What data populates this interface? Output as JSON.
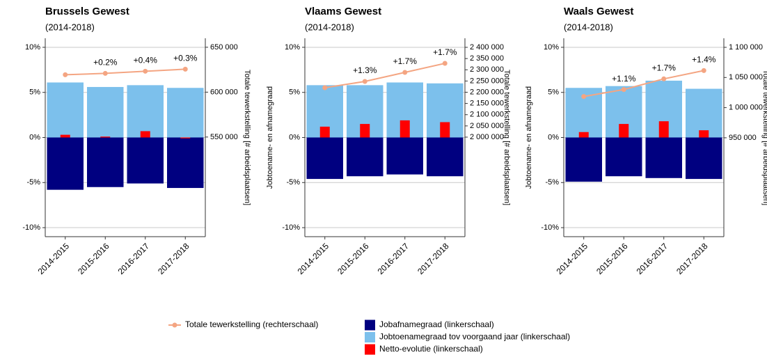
{
  "chart_data": [
    {
      "type": "bar",
      "title": "Brussels Gewest",
      "subtitle": "(2014-2018)",
      "y2label": "Totale tewerkstelling [# arbeidsplaatsen]",
      "categories": [
        "2014-2015",
        "2015-2016",
        "2016-2017",
        "2017-2018"
      ],
      "ylim": [
        -11,
        11
      ],
      "yticks": [
        {
          "value": -10,
          "label": "-10%"
        },
        {
          "value": -5,
          "label": "-5%"
        },
        {
          "value": 0,
          "label": "0%"
        },
        {
          "value": 5,
          "label": "5%"
        },
        {
          "value": 10,
          "label": "10%"
        }
      ],
      "y2lim": [
        439000,
        660000
      ],
      "y2ticks": [
        {
          "value": 550000,
          "label": "550 000"
        },
        {
          "value": 600000,
          "label": "600 000"
        },
        {
          "value": 650000,
          "label": "650 000"
        }
      ],
      "grid": true,
      "series": [
        {
          "name": "Jobafnamegraad (linkerschaal)",
          "color": "#000080",
          "values": [
            -5.8,
            -5.5,
            -5.1,
            -5.6
          ]
        },
        {
          "name": "Jobtoenamegraad tov voorgaand jaar (linkerschaal)",
          "color": "#7cc0ec",
          "values": [
            6.1,
            5.6,
            5.8,
            5.5
          ]
        },
        {
          "name": "Netto-evolutie (linkerschaal)",
          "color": "#ff0000",
          "values": [
            0.3,
            0.1,
            0.7,
            -0.1
          ]
        },
        {
          "name": "Totale tewerkstelling (rechterschaal)",
          "type": "line",
          "axis": "y2",
          "color": "#f4a582",
          "values": [
            619400,
            620900,
            623300,
            625600
          ],
          "annotations": [
            null,
            "+0.2%",
            "+0.4%",
            "+0.3%"
          ]
        }
      ]
    },
    {
      "type": "bar",
      "title": "Vlaams Gewest",
      "subtitle": "(2014-2018)",
      "ylabel": "Jobtoename- en afnamegraad",
      "y2label": "Totale tewerkstelling [# arbeidsplaatsen]",
      "categories": [
        "2014-2015",
        "2015-2016",
        "2016-2017",
        "2017-2018"
      ],
      "ylim": [
        -11,
        11
      ],
      "yticks": [
        {
          "value": -10,
          "label": "-10%"
        },
        {
          "value": -5,
          "label": "-5%"
        },
        {
          "value": 0,
          "label": "0%"
        },
        {
          "value": 5,
          "label": "5%"
        },
        {
          "value": 10,
          "label": "10%"
        }
      ],
      "y2lim": [
        1556600,
        2440300
      ],
      "y2ticks": [
        {
          "value": 2000000,
          "label": "2 000 000"
        },
        {
          "value": 2050000,
          "label": "2 050 000"
        },
        {
          "value": 2100000,
          "label": "2 100 000"
        },
        {
          "value": 2150000,
          "label": "2 150 000"
        },
        {
          "value": 2200000,
          "label": "2 200 000"
        },
        {
          "value": 2250000,
          "label": "2 250 000"
        },
        {
          "value": 2300000,
          "label": "2 300 000"
        },
        {
          "value": 2350000,
          "label": "2 350 000"
        },
        {
          "value": 2400000,
          "label": "2 400 000"
        }
      ],
      "grid": true,
      "series": [
        {
          "color": "#000080",
          "values": [
            -4.6,
            -4.3,
            -4.1,
            -4.3
          ]
        },
        {
          "color": "#7cc0ec",
          "values": [
            5.8,
            5.8,
            6.1,
            6.0
          ]
        },
        {
          "color": "#ff0000",
          "values": [
            1.2,
            1.5,
            1.9,
            1.7
          ]
        },
        {
          "type": "line",
          "axis": "y2",
          "color": "#f4a582",
          "values": [
            2220200,
            2248000,
            2288400,
            2328700
          ],
          "annotations": [
            null,
            "+1.3%",
            "+1.7%",
            "+1.7%"
          ]
        }
      ]
    },
    {
      "type": "bar",
      "title": "Waals Gewest",
      "subtitle": "(2014-2018)",
      "ylabel": "Jobtoename- en afnamegraad",
      "y2label": "Totale tewerkstelling [# arbeidsplaatsen]",
      "categories": [
        "2014-2015",
        "2015-2016",
        "2016-2017",
        "2017-2018"
      ],
      "ylim": [
        -11,
        11
      ],
      "yticks": [
        {
          "value": -10,
          "label": "-10%"
        },
        {
          "value": -5,
          "label": "-5%"
        },
        {
          "value": 0,
          "label": "0%"
        },
        {
          "value": 5,
          "label": "5%"
        },
        {
          "value": 10,
          "label": "10%"
        }
      ],
      "y2lim": [
        786000,
        1115000
      ],
      "y2ticks": [
        {
          "value": 950000,
          "label": "950 000"
        },
        {
          "value": 1000000,
          "label": "1 000 000"
        },
        {
          "value": 1050000,
          "label": "1 050 000"
        },
        {
          "value": 1100000,
          "label": "1 100 000"
        }
      ],
      "grid": true,
      "series": [
        {
          "color": "#000080",
          "values": [
            -4.9,
            -4.3,
            -4.5,
            -4.6
          ]
        },
        {
          "color": "#7cc0ec",
          "values": [
            5.5,
            5.7,
            6.3,
            5.4
          ]
        },
        {
          "color": "#ff0000",
          "values": [
            0.6,
            1.5,
            1.8,
            0.8
          ]
        },
        {
          "type": "line",
          "axis": "y2",
          "color": "#f4a582",
          "values": [
            1018500,
            1030000,
            1047700,
            1061500
          ],
          "annotations": [
            null,
            "+1.1%",
            "+1.7%",
            "+1.4%"
          ]
        }
      ]
    }
  ]
}
